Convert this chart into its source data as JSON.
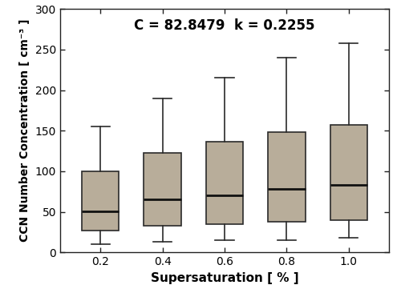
{
  "categories": [
    "0.2",
    "0.4",
    "0.6",
    "0.8",
    "1.0"
  ],
  "box_stats": [
    {
      "whislo": 10,
      "q1": 27,
      "med": 51,
      "q3": 100,
      "whishi": 155
    },
    {
      "whislo": 13,
      "q1": 33,
      "med": 65,
      "q3": 123,
      "whishi": 190
    },
    {
      "whislo": 15,
      "q1": 35,
      "med": 70,
      "q3": 136,
      "whishi": 215
    },
    {
      "whislo": 15,
      "q1": 38,
      "med": 78,
      "q3": 148,
      "whishi": 240
    },
    {
      "whislo": 18,
      "q1": 40,
      "med": 83,
      "q3": 157,
      "whishi": 258
    }
  ],
  "box_color": "#b8ad9a",
  "box_edge_color": "#2a2a2a",
  "median_color": "#111111",
  "whisker_color": "#2a2a2a",
  "cap_color": "#2a2a2a",
  "title_text": "C = 82.8479  k = 0.2255",
  "title_fontsize": 12,
  "title_fontweight": "bold",
  "xlabel": "Supersaturation [ % ]",
  "ylabel": "CCN Number Concentration [ cm⁻³ ]",
  "xlabel_fontsize": 11,
  "ylabel_fontsize": 10,
  "tick_fontsize": 10,
  "ylim": [
    0,
    300
  ],
  "yticks": [
    0,
    50,
    100,
    150,
    200,
    250,
    300
  ],
  "box_width": 0.6,
  "linewidth": 1.2,
  "median_linewidth": 2.0,
  "background_color": "#ffffff",
  "fig_width": 5.0,
  "fig_height": 3.71,
  "dpi": 100
}
